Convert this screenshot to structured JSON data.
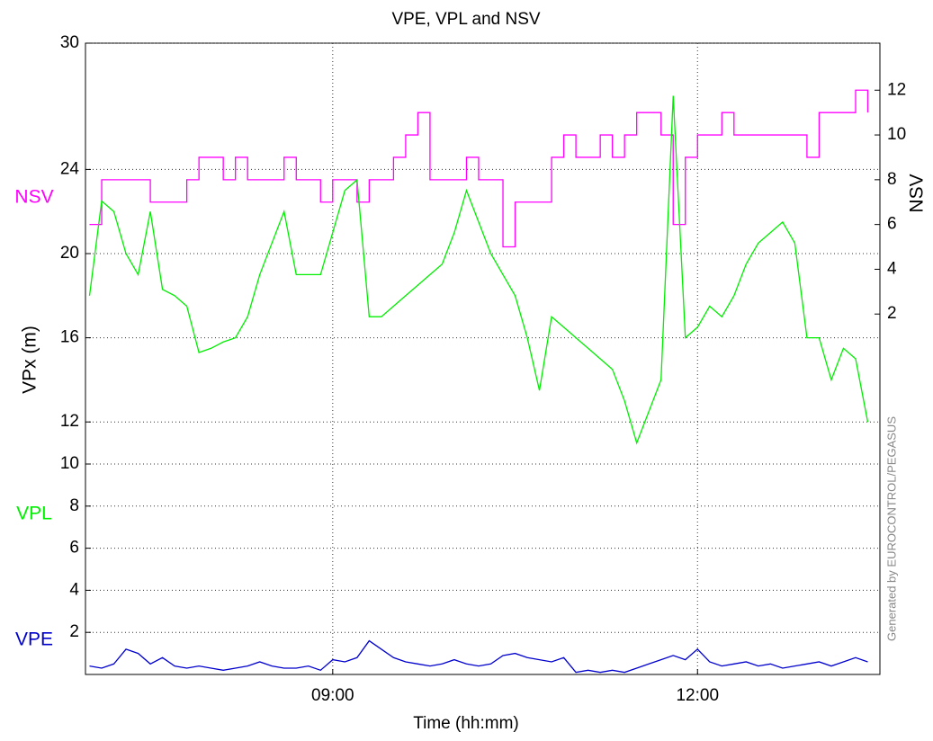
{
  "chart_data": {
    "type": "line",
    "title": "VPE, VPL and NSV",
    "xlabel": "Time (hh:mm)",
    "ylabel": "VPx  (m)",
    "y2label": "NSV",
    "annotation": "Generated by EUROCONTROL/PEGASUS",
    "x": [
      420,
      426,
      432,
      438,
      444,
      450,
      456,
      462,
      468,
      474,
      480,
      486,
      492,
      498,
      504,
      510,
      516,
      522,
      528,
      534,
      540,
      546,
      552,
      558,
      564,
      570,
      576,
      582,
      588,
      594,
      600,
      606,
      612,
      618,
      624,
      630,
      636,
      642,
      648,
      654,
      660,
      666,
      672,
      678,
      684,
      690,
      696,
      702,
      708,
      714,
      720,
      726,
      732,
      738,
      744,
      750,
      756,
      762,
      768,
      774,
      780,
      786,
      792,
      798,
      804
    ],
    "xlim": [
      418,
      810
    ],
    "xticks": [
      {
        "value": 540,
        "label": "09:00"
      },
      {
        "value": 720,
        "label": "12:00"
      }
    ],
    "ylim": [
      0,
      30
    ],
    "yticks": [
      2,
      4,
      6,
      8,
      10,
      12,
      16,
      20,
      24,
      30
    ],
    "y2lim": [
      -14.1,
      14.1
    ],
    "y2ticks": [
      2,
      4,
      6,
      8,
      10,
      12
    ],
    "grid": true,
    "series": [
      {
        "name": "NSV",
        "color": "#ff00ff",
        "axis": "y2",
        "drawstyle": "steps",
        "values": [
          6,
          8,
          8,
          8,
          8,
          7,
          7,
          7,
          8,
          9,
          9,
          8,
          9,
          8,
          8,
          8,
          9,
          8,
          8,
          7,
          8,
          8,
          7,
          8,
          8,
          9,
          10,
          11,
          8,
          8,
          8,
          9,
          8,
          8,
          5,
          7,
          7,
          7,
          9,
          10,
          9,
          9,
          10,
          9,
          10,
          11,
          11,
          10,
          6,
          9,
          10,
          10,
          11,
          10,
          10,
          10,
          10,
          10,
          10,
          9,
          11,
          11,
          11,
          12,
          11
        ]
      },
      {
        "name": "VPL",
        "color": "#00ee00",
        "values": [
          18,
          22.5,
          22,
          20,
          19,
          22,
          18.3,
          18,
          17.5,
          15.3,
          15.5,
          15.8,
          16,
          17,
          19,
          20.5,
          22,
          19,
          19,
          19,
          21,
          23,
          23.5,
          17,
          17,
          17.5,
          18,
          18.5,
          19,
          19.5,
          21,
          23,
          21.5,
          20,
          19,
          18,
          16,
          13.5,
          17,
          16.5,
          16,
          15.5,
          15,
          14.5,
          13,
          11,
          12.5,
          14,
          27.5,
          16,
          16.5,
          17.5,
          17,
          18,
          19.5,
          20.5,
          21,
          21.5,
          20.5,
          16,
          16,
          14,
          15.5,
          15,
          12
        ]
      },
      {
        "name": "VPE",
        "color": "#0000cc",
        "values": [
          0.4,
          0.3,
          0.5,
          1.2,
          1.0,
          0.5,
          0.8,
          0.4,
          0.3,
          0.4,
          0.3,
          0.2,
          0.3,
          0.4,
          0.6,
          0.4,
          0.3,
          0.3,
          0.4,
          0.2,
          0.7,
          0.6,
          0.8,
          1.6,
          1.2,
          0.8,
          0.6,
          0.5,
          0.4,
          0.5,
          0.7,
          0.5,
          0.4,
          0.5,
          0.9,
          1.0,
          0.8,
          0.7,
          0.6,
          0.8,
          0.1,
          0.2,
          0.1,
          0.2,
          0.1,
          0.3,
          0.5,
          0.7,
          0.9,
          0.7,
          1.2,
          0.6,
          0.4,
          0.5,
          0.6,
          0.4,
          0.5,
          0.3,
          0.4,
          0.5,
          0.6,
          0.4,
          0.6,
          0.8,
          0.6
        ]
      }
    ]
  }
}
